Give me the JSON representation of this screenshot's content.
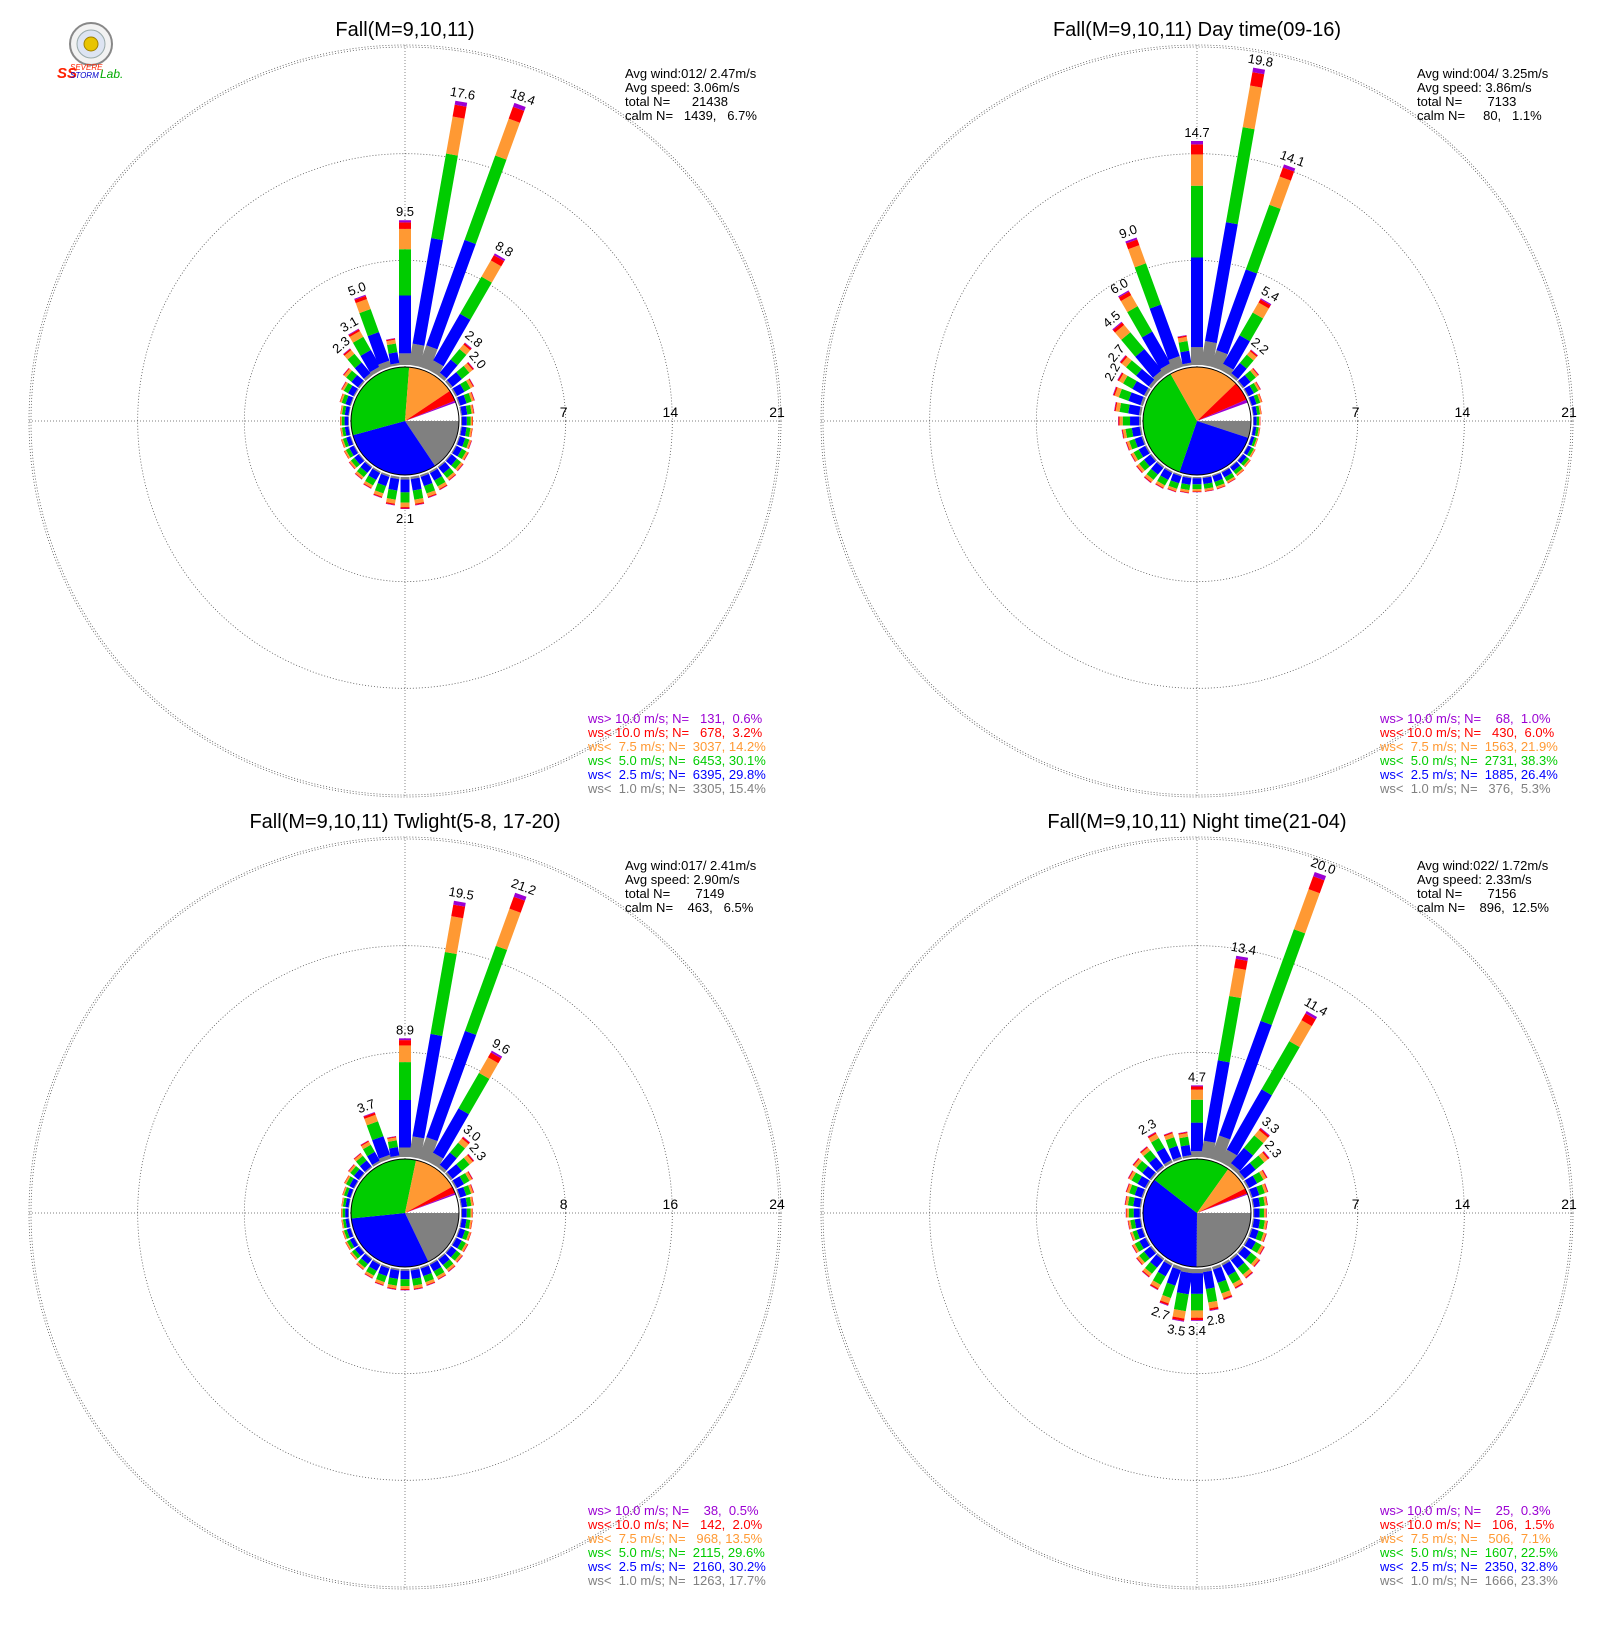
{
  "logo": {
    "line1": "SEVERE",
    "line2": "STORM",
    "line3": "Lab.",
    "initials": "SS"
  },
  "legend_colors": {
    "ws_gt_10": "#9b00d3",
    "ws_lt_10": "#ff0000",
    "ws_lt_7_5": "#ff9933",
    "ws_lt_5": "#00cc00",
    "ws_lt_2_5": "#0000ff",
    "ws_lt_1": "#808080"
  },
  "chart_data": [
    {
      "type": "windrose",
      "title": "Fall(M=9,10,11)",
      "ring_labels": [
        "7",
        "14",
        "21"
      ],
      "rmax": 21,
      "stats": [
        "Avg wind:012/ 2.47m/s",
        "Avg speed: 3.06m/s",
        "total N=      21438",
        "calm N=   1439,   6.7%"
      ],
      "legend": [
        "ws> 10.0 m/s; N=   131,  0.6%",
        "ws< 10.0 m/s; N=   678,  3.2%",
        "ws<  7.5 m/s; N=  3037, 14.2%",
        "ws<  5.0 m/s; N=  6453, 30.1%",
        "ws<  2.5 m/s; N=  6395, 29.8%",
        "ws<  1.0 m/s; N=  3305, 15.4%"
      ],
      "pie": [
        15.4,
        29.8,
        30.1,
        14.2,
        3.2,
        0.6
      ],
      "bars": [
        {
          "deg": 0,
          "v": 9.5,
          "label": "9.5"
        },
        {
          "deg": 10,
          "v": 17.6,
          "label": "17.6"
        },
        {
          "deg": 20,
          "v": 18.4,
          "label": "18.4"
        },
        {
          "deg": 30,
          "v": 8.8,
          "label": "8.8"
        },
        {
          "deg": 40,
          "v": 2.8,
          "label": "2.8"
        },
        {
          "deg": 50,
          "v": 2.0,
          "label": "2.0"
        },
        {
          "deg": 60,
          "v": 1.4
        },
        {
          "deg": 70,
          "v": 1.1
        },
        {
          "deg": 80,
          "v": 0.9
        },
        {
          "deg": 90,
          "v": 0.8
        },
        {
          "deg": 100,
          "v": 0.8
        },
        {
          "deg": 110,
          "v": 0.9
        },
        {
          "deg": 120,
          "v": 1.0
        },
        {
          "deg": 130,
          "v": 1.1
        },
        {
          "deg": 140,
          "v": 1.2
        },
        {
          "deg": 150,
          "v": 1.4
        },
        {
          "deg": 160,
          "v": 1.6
        },
        {
          "deg": 170,
          "v": 1.9
        },
        {
          "deg": 180,
          "v": 2.1,
          "label": "2.1"
        },
        {
          "deg": 190,
          "v": 1.9
        },
        {
          "deg": 200,
          "v": 1.6
        },
        {
          "deg": 210,
          "v": 1.3
        },
        {
          "deg": 220,
          "v": 1.1
        },
        {
          "deg": 230,
          "v": 0.9
        },
        {
          "deg": 240,
          "v": 0.8
        },
        {
          "deg": 250,
          "v": 0.7
        },
        {
          "deg": 260,
          "v": 0.6
        },
        {
          "deg": 270,
          "v": 0.6
        },
        {
          "deg": 280,
          "v": 0.6
        },
        {
          "deg": 290,
          "v": 0.8
        },
        {
          "deg": 300,
          "v": 1.0
        },
        {
          "deg": 310,
          "v": 1.4
        },
        {
          "deg": 320,
          "v": 2.3,
          "label": "2.3"
        },
        {
          "deg": 330,
          "v": 3.1,
          "label": "3.1"
        },
        {
          "deg": 340,
          "v": 5.0,
          "label": "5.0"
        },
        {
          "deg": 350,
          "v": 1.8
        }
      ]
    },
    {
      "type": "windrose",
      "title": "Fall(M=9,10,11) Day time(09-16)",
      "ring_labels": [
        "7",
        "14",
        "21"
      ],
      "rmax": 21,
      "stats": [
        "Avg wind:004/ 3.25m/s",
        "Avg speed: 3.86m/s",
        "total N=       7133",
        "calm N=     80,   1.1%"
      ],
      "legend": [
        "ws> 10.0 m/s; N=    68,  1.0%",
        "ws< 10.0 m/s; N=   430,  6.0%",
        "ws<  7.5 m/s; N=  1563, 21.9%",
        "ws<  5.0 m/s; N=  2731, 38.3%",
        "ws<  2.5 m/s; N=  1885, 26.4%",
        "ws<  1.0 m/s; N=   376,  5.3%"
      ],
      "pie": [
        5.3,
        26.4,
        38.3,
        21.9,
        6.0,
        1.0
      ],
      "bars": [
        {
          "deg": 0,
          "v": 14.7,
          "label": "14.7"
        },
        {
          "deg": 10,
          "v": 19.8,
          "label": "19.8"
        },
        {
          "deg": 20,
          "v": 14.1,
          "label": "14.1"
        },
        {
          "deg": 30,
          "v": 5.4,
          "label": "5.4"
        },
        {
          "deg": 40,
          "v": 2.2,
          "label": "2.2"
        },
        {
          "deg": 50,
          "v": 1.4
        },
        {
          "deg": 60,
          "v": 1.0
        },
        {
          "deg": 70,
          "v": 0.8
        },
        {
          "deg": 80,
          "v": 0.6
        },
        {
          "deg": 90,
          "v": 0.5
        },
        {
          "deg": 100,
          "v": 0.5
        },
        {
          "deg": 110,
          "v": 0.5
        },
        {
          "deg": 120,
          "v": 0.6
        },
        {
          "deg": 130,
          "v": 0.7
        },
        {
          "deg": 140,
          "v": 0.8
        },
        {
          "deg": 150,
          "v": 0.9
        },
        {
          "deg": 160,
          "v": 1.0
        },
        {
          "deg": 170,
          "v": 1.0
        },
        {
          "deg": 180,
          "v": 1.0
        },
        {
          "deg": 190,
          "v": 1.1
        },
        {
          "deg": 200,
          "v": 1.2
        },
        {
          "deg": 210,
          "v": 1.3
        },
        {
          "deg": 220,
          "v": 1.4
        },
        {
          "deg": 230,
          "v": 1.3
        },
        {
          "deg": 240,
          "v": 1.2
        },
        {
          "deg": 250,
          "v": 1.2
        },
        {
          "deg": 260,
          "v": 1.3
        },
        {
          "deg": 270,
          "v": 1.5
        },
        {
          "deg": 280,
          "v": 1.8
        },
        {
          "deg": 290,
          "v": 2.1
        },
        {
          "deg": 300,
          "v": 2.2,
          "label": "2.2"
        },
        {
          "deg": 310,
          "v": 2.7,
          "label": "2.7"
        },
        {
          "deg": 320,
          "v": 4.5,
          "label": "4.5"
        },
        {
          "deg": 330,
          "v": 6.0,
          "label": "6.0"
        },
        {
          "deg": 340,
          "v": 9.0,
          "label": "9.0"
        },
        {
          "deg": 350,
          "v": 2.0
        }
      ]
    },
    {
      "type": "windrose",
      "title": "Fall(M=9,10,11) Twlight(5-8, 17-20)",
      "ring_labels": [
        "8",
        "16",
        "24"
      ],
      "rmax": 24,
      "stats": [
        "Avg wind:017/ 2.41m/s",
        "Avg speed: 2.90m/s",
        "total N=       7149",
        "calm N=    463,   6.5%"
      ],
      "legend": [
        "ws> 10.0 m/s; N=    38,  0.5%",
        "ws< 10.0 m/s; N=   142,  2.0%",
        "ws<  7.5 m/s; N=   968, 13.5%",
        "ws<  5.0 m/s; N=  2115, 29.6%",
        "ws<  2.5 m/s; N=  2160, 30.2%",
        "ws<  1.0 m/s; N=  1263, 17.7%"
      ],
      "pie": [
        17.7,
        30.2,
        29.6,
        13.5,
        2.0,
        0.5
      ],
      "bars": [
        {
          "deg": 0,
          "v": 8.9,
          "label": "8.9"
        },
        {
          "deg": 10,
          "v": 19.5,
          "label": "19.5"
        },
        {
          "deg": 20,
          "v": 21.2,
          "label": "21.2"
        },
        {
          "deg": 30,
          "v": 9.6,
          "label": "9.6"
        },
        {
          "deg": 40,
          "v": 3.0,
          "label": "3.0"
        },
        {
          "deg": 50,
          "v": 2.3,
          "label": "2.3"
        },
        {
          "deg": 60,
          "v": 1.5
        },
        {
          "deg": 70,
          "v": 1.2
        },
        {
          "deg": 80,
          "v": 1.0
        },
        {
          "deg": 90,
          "v": 0.9
        },
        {
          "deg": 100,
          "v": 0.9
        },
        {
          "deg": 110,
          "v": 1.0
        },
        {
          "deg": 120,
          "v": 1.1
        },
        {
          "deg": 130,
          "v": 1.2
        },
        {
          "deg": 140,
          "v": 1.3
        },
        {
          "deg": 150,
          "v": 1.4
        },
        {
          "deg": 160,
          "v": 1.5
        },
        {
          "deg": 170,
          "v": 1.6
        },
        {
          "deg": 180,
          "v": 1.6
        },
        {
          "deg": 190,
          "v": 1.6
        },
        {
          "deg": 200,
          "v": 1.5
        },
        {
          "deg": 210,
          "v": 1.3
        },
        {
          "deg": 220,
          "v": 1.1
        },
        {
          "deg": 230,
          "v": 0.9
        },
        {
          "deg": 240,
          "v": 0.8
        },
        {
          "deg": 250,
          "v": 0.7
        },
        {
          "deg": 260,
          "v": 0.6
        },
        {
          "deg": 270,
          "v": 0.6
        },
        {
          "deg": 280,
          "v": 0.6
        },
        {
          "deg": 290,
          "v": 0.7
        },
        {
          "deg": 300,
          "v": 0.9
        },
        {
          "deg": 310,
          "v": 1.1
        },
        {
          "deg": 320,
          "v": 1.4
        },
        {
          "deg": 330,
          "v": 1.9
        },
        {
          "deg": 340,
          "v": 3.7,
          "label": "3.7"
        },
        {
          "deg": 350,
          "v": 1.6
        }
      ]
    },
    {
      "type": "windrose",
      "title": "Fall(M=9,10,11) Night time(21-04)",
      "ring_labels": [
        "7",
        "14",
        "21"
      ],
      "rmax": 21,
      "stats": [
        "Avg wind:022/ 1.72m/s",
        "Avg speed: 2.33m/s",
        "total N=       7156",
        "calm N=    896,  12.5%"
      ],
      "legend": [
        "ws> 10.0 m/s; N=    25,  0.3%",
        "ws< 10.0 m/s; N=   106,  1.5%",
        "ws<  7.5 m/s; N=   506,  7.1%",
        "ws<  5.0 m/s; N=  1607, 22.5%",
        "ws<  2.5 m/s; N=  2350, 32.8%",
        "ws<  1.0 m/s; N=  1666, 23.3%"
      ],
      "pie": [
        23.3,
        32.8,
        22.5,
        7.1,
        1.5,
        0.3
      ],
      "bars": [
        {
          "deg": 0,
          "v": 4.7,
          "label": "4.7"
        },
        {
          "deg": 10,
          "v": 13.4,
          "label": "13.4"
        },
        {
          "deg": 20,
          "v": 20.0,
          "label": "20.0"
        },
        {
          "deg": 30,
          "v": 11.4,
          "label": "11.4"
        },
        {
          "deg": 40,
          "v": 3.3,
          "label": "3.3"
        },
        {
          "deg": 50,
          "v": 2.3,
          "label": "2.3"
        },
        {
          "deg": 60,
          "v": 1.5
        },
        {
          "deg": 70,
          "v": 1.2
        },
        {
          "deg": 80,
          "v": 1.0
        },
        {
          "deg": 90,
          "v": 0.9
        },
        {
          "deg": 100,
          "v": 1.0
        },
        {
          "deg": 110,
          "v": 1.1
        },
        {
          "deg": 120,
          "v": 1.3
        },
        {
          "deg": 130,
          "v": 1.5
        },
        {
          "deg": 140,
          "v": 1.7
        },
        {
          "deg": 150,
          "v": 1.9
        },
        {
          "deg": 160,
          "v": 2.3
        },
        {
          "deg": 170,
          "v": 2.8,
          "label": "2.8"
        },
        {
          "deg": 180,
          "v": 3.4,
          "label": "3.4"
        },
        {
          "deg": 190,
          "v": 3.5,
          "label": "3.5"
        },
        {
          "deg": 200,
          "v": 2.7,
          "label": "2.7"
        },
        {
          "deg": 210,
          "v": 2.0
        },
        {
          "deg": 220,
          "v": 1.6
        },
        {
          "deg": 230,
          "v": 1.3
        },
        {
          "deg": 240,
          "v": 1.1
        },
        {
          "deg": 250,
          "v": 0.9
        },
        {
          "deg": 260,
          "v": 0.9
        },
        {
          "deg": 270,
          "v": 1.0
        },
        {
          "deg": 280,
          "v": 1.1
        },
        {
          "deg": 290,
          "v": 1.2
        },
        {
          "deg": 300,
          "v": 1.4
        },
        {
          "deg": 310,
          "v": 1.6
        },
        {
          "deg": 320,
          "v": 1.8
        },
        {
          "deg": 330,
          "v": 2.3,
          "label": "2.3"
        },
        {
          "deg": 340,
          "v": 1.9
        },
        {
          "deg": 350,
          "v": 1.7
        }
      ]
    }
  ]
}
